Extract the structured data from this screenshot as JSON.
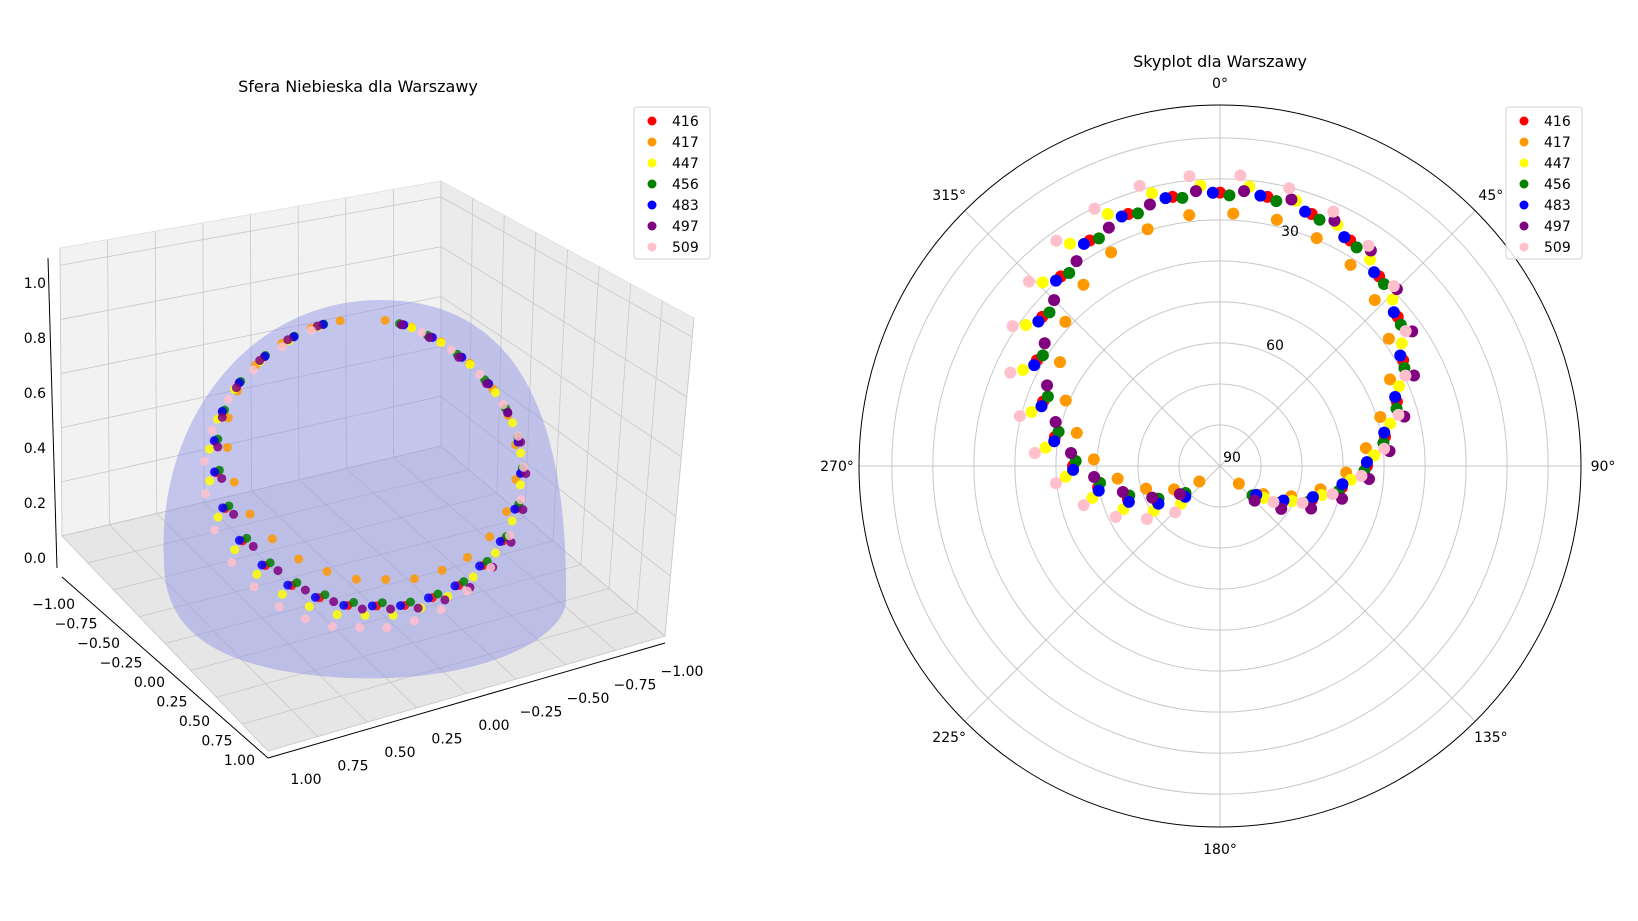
{
  "chart_data": [
    {
      "type": "scatter",
      "projection": "3d",
      "title": "Sfera Niebieska dla Warszawy",
      "xlabel": "",
      "ylabel": "",
      "zlabel": "",
      "xlim": [
        1.0,
        -1.0
      ],
      "ylim": [
        -1.0,
        1.0
      ],
      "zlim": [
        0.0,
        1.0
      ],
      "x_ticks": [
        "1.00",
        "0.75",
        "0.50",
        "0.25",
        "0.00",
        "−0.25",
        "−0.50",
        "−0.75",
        "−1.00"
      ],
      "y_ticks": [
        "−1.00",
        "−0.75",
        "−0.50",
        "−0.25",
        "0.00",
        "0.25",
        "0.50",
        "0.75",
        "1.00"
      ],
      "z_ticks": [
        "0.0",
        "0.2",
        "0.4",
        "0.6",
        "0.8",
        "1.0"
      ],
      "grid": true,
      "surface": {
        "shape": "hemisphere",
        "color": "#8b8fe6",
        "opacity": 0.45
      },
      "legend": "top-right",
      "series_ref": "shared"
    },
    {
      "type": "scatter",
      "projection": "polar",
      "title": "Skyplot dla Warszawy",
      "theta_direction": "clockwise",
      "theta_zero": "N",
      "theta_ticks": [
        "0°",
        "45°",
        "90°",
        "135°",
        "180°",
        "225°",
        "270°",
        "315°"
      ],
      "r_ticks": [
        "30",
        "60",
        "90"
      ],
      "r_reversed": true,
      "rlim": [
        90,
        -50
      ],
      "grid": true,
      "legend": "top-right",
      "series_ref": "shared"
    }
  ],
  "series": [
    {
      "name": "416",
      "color": "#ff0000",
      "az_offset": 0.0,
      "elev_offset": 0
    },
    {
      "name": "417",
      "color": "#ff9900",
      "az_offset": 3.0,
      "elev_offset": 8
    },
    {
      "name": "447",
      "color": "#ffff00",
      "az_offset": -4.0,
      "elev_offset": -3
    },
    {
      "name": "456",
      "color": "#007f00",
      "az_offset": 2.0,
      "elev_offset": 1
    },
    {
      "name": "483",
      "color": "#0000ff",
      "az_offset": -1.5,
      "elev_offset": 0
    },
    {
      "name": "497",
      "color": "#800080",
      "az_offset": 5.0,
      "elev_offset": -1
    },
    {
      "name": "509",
      "color": "#ffc0cb",
      "az_offset": -6.0,
      "elev_offset": -7
    }
  ],
  "track": {
    "azimuth": [
      -130,
      -120,
      -110,
      -100,
      -90,
      -80,
      -70,
      -60,
      -50,
      -40,
      -30,
      -20,
      -10,
      0,
      10,
      20,
      30,
      40,
      50,
      60,
      70,
      80,
      90,
      100,
      110,
      120,
      130
    ],
    "elevation": [
      72,
      62,
      52,
      42,
      33,
      25,
      17,
      8,
      0,
      -6,
      -11,
      -14,
      -16,
      -16,
      -16,
      -14,
      -11,
      -6,
      0,
      8,
      17,
      25,
      33,
      42,
      52,
      62,
      72
    ]
  }
}
